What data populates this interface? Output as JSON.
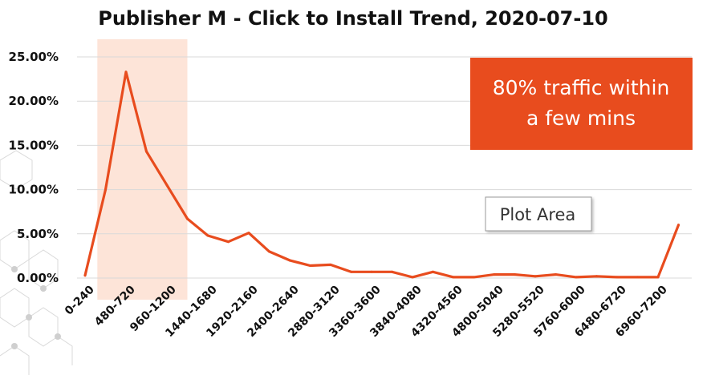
{
  "chart_data": {
    "type": "line",
    "title": "Publisher M - Click to Install Trend, 2020-07-10",
    "xlabel": "",
    "ylabel": "",
    "ylim": [
      0,
      0.25
    ],
    "y_ticks": [
      {
        "value": 0,
        "label": "0.00%"
      },
      {
        "value": 0.05,
        "label": "5.00%"
      },
      {
        "value": 0.1,
        "label": "10.00%"
      },
      {
        "value": 0.15,
        "label": "15.00%"
      },
      {
        "value": 0.2,
        "label": "20.00%"
      },
      {
        "value": 0.25,
        "label": "25.00%"
      }
    ],
    "grid": true,
    "x_tick_labels": [
      "0-240",
      "480-720",
      "960-1200",
      "1440-1680",
      "1920-2160",
      "2400-2640",
      "2880-3120",
      "3360-3600",
      "3840-4080",
      "4320-4560",
      "4800-5040",
      "5280-5520",
      "5760-6000",
      "6480-6720",
      "6960-7200"
    ],
    "series": [
      {
        "color": "#e84c1e",
        "values": [
          0.003,
          0.1,
          0.233,
          0.143,
          0.105,
          0.067,
          0.048,
          0.041,
          0.051,
          0.03,
          0.02,
          0.014,
          0.015,
          0.007,
          0.007,
          0.007,
          0.001,
          0.007,
          0.001,
          0.001,
          0.004,
          0.004,
          0.002,
          0.004,
          0.001,
          0.002,
          0.001,
          0.001,
          0.001,
          0.06
        ]
      }
    ],
    "highlight": {
      "from_index": 0.6,
      "to_index": 5.0,
      "color": "#fde4d8"
    },
    "annotation": {
      "lines": [
        "80% traffic within",
        "a few mins"
      ],
      "bg_color": "#e84c1e",
      "text_color": "#ffffff"
    },
    "tooltip": {
      "text": "Plot Area"
    }
  }
}
